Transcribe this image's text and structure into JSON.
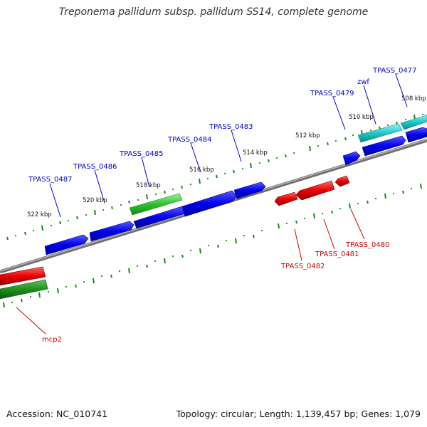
{
  "title": "Treponema pallidum subsp. pallidum SS14, complete genome",
  "footer": {
    "accession": "Accession: NC_010741",
    "summary": "Topology: circular; Length: 1,139,457 bp; Genes: 1,079"
  },
  "colors": {
    "backbone": "#8a8a8a",
    "tick": "#1a8a1a",
    "forward_gene": "#0000ee",
    "reverse_gene": "#e80000",
    "green_gene": "#2ec22e",
    "dark_green_gene": "#1f8f1f",
    "cyan_gene": "#1fc8c8",
    "forward_label": "#0000cc",
    "reverse_label": "#cc0000"
  },
  "scale_labels": [
    "522 kbp",
    "520 kbp",
    "518 kbp",
    "516 kbp",
    "514 kbp",
    "512 kbp",
    "510 kbp",
    "508 kbp"
  ],
  "forward_labels": [
    "TPASS_0487",
    "TPASS_0486",
    "TPASS_0485",
    "TPASS_0484",
    "TPASS_0483",
    "TPASS_0479",
    "zwf",
    "TPASS_0477"
  ],
  "reverse_labels": [
    "TPASS_0482",
    "TPASS_0481",
    "TPASS_0480",
    "mcp2"
  ]
}
